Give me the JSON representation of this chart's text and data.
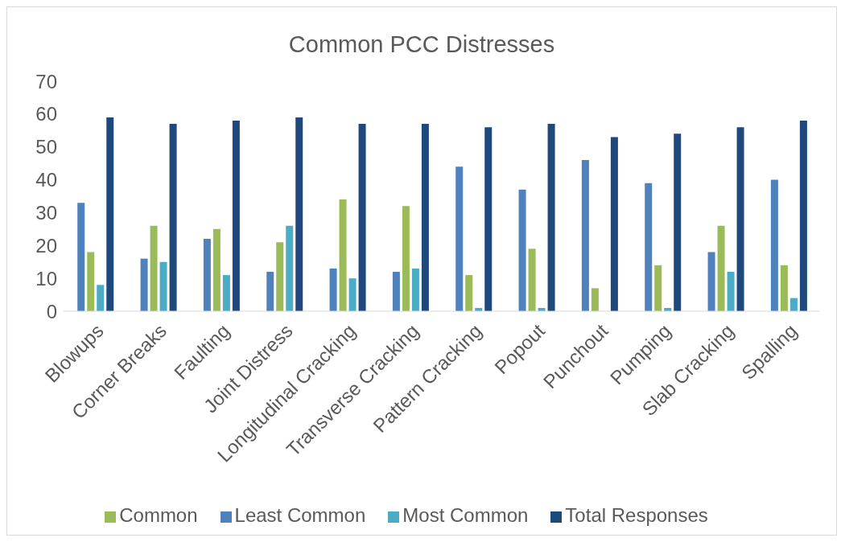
{
  "chart_data": {
    "type": "bar",
    "title": "Common PCC Distresses",
    "categories": [
      "Blowups",
      "Corner Breaks",
      "Faulting",
      "Joint Distress",
      "Longitudinal Cracking",
      "Transverse Cracking",
      "Pattern Cracking",
      "Popout",
      "Punchout",
      "Pumping",
      "Slab Cracking",
      "Spalling"
    ],
    "series": [
      {
        "name": "Least Common",
        "color": "#4f81bd",
        "values": [
          33,
          16,
          22,
          12,
          13,
          12,
          44,
          37,
          46,
          39,
          18,
          40
        ]
      },
      {
        "name": "Common",
        "color": "#9bbb59",
        "values": [
          18,
          26,
          25,
          21,
          34,
          32,
          11,
          19,
          7,
          14,
          26,
          14
        ]
      },
      {
        "name": "Most Common",
        "color": "#4bacc6",
        "values": [
          8,
          15,
          11,
          26,
          10,
          13,
          1,
          1,
          0,
          1,
          12,
          4
        ]
      },
      {
        "name": "Total Responses",
        "color": "#1f497d",
        "values": [
          59,
          57,
          58,
          59,
          57,
          57,
          56,
          57,
          53,
          54,
          56,
          58
        ]
      }
    ],
    "ylim": [
      0,
      70
    ],
    "yticks": [
      0,
      10,
      20,
      30,
      40,
      50,
      60,
      70
    ],
    "grid": false,
    "legend": "bottom"
  }
}
